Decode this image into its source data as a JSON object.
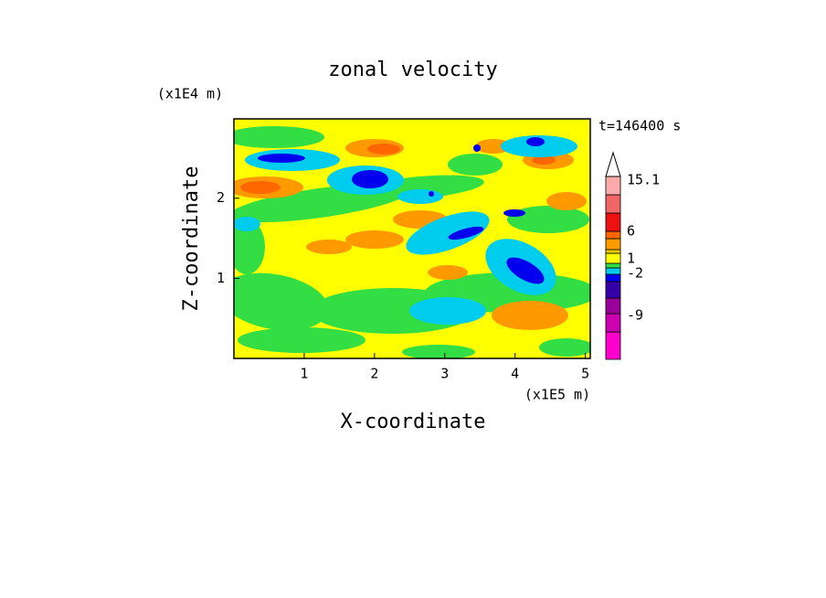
{
  "chart_data": {
    "type": "contour",
    "title": "zonal velocity",
    "x_label": "X-coordinate",
    "y_label": "Z-coordinate",
    "x_unit": "(x1E5 m)",
    "y_unit": "(x1E4 m)",
    "time_label": "t=146400 s",
    "xlim": [
      0,
      5.07
    ],
    "xticks": [
      1,
      2,
      3,
      4,
      5
    ],
    "ylim": [
      0,
      2.99
    ],
    "yticks": [
      1,
      2
    ],
    "colorbar": {
      "colors": [
        "#ff00cc",
        "#cc00b0",
        "#990099",
        "#3300aa",
        "#0000ee",
        "#00ccee",
        "#33dd44",
        "#ffff00",
        "#ffd000",
        "#ff9900",
        "#ff6600",
        "#ee1111",
        "#ee6666",
        "#ffaaaa"
      ],
      "ticks": [
        -9,
        -2,
        1,
        6,
        15.1
      ]
    }
  }
}
